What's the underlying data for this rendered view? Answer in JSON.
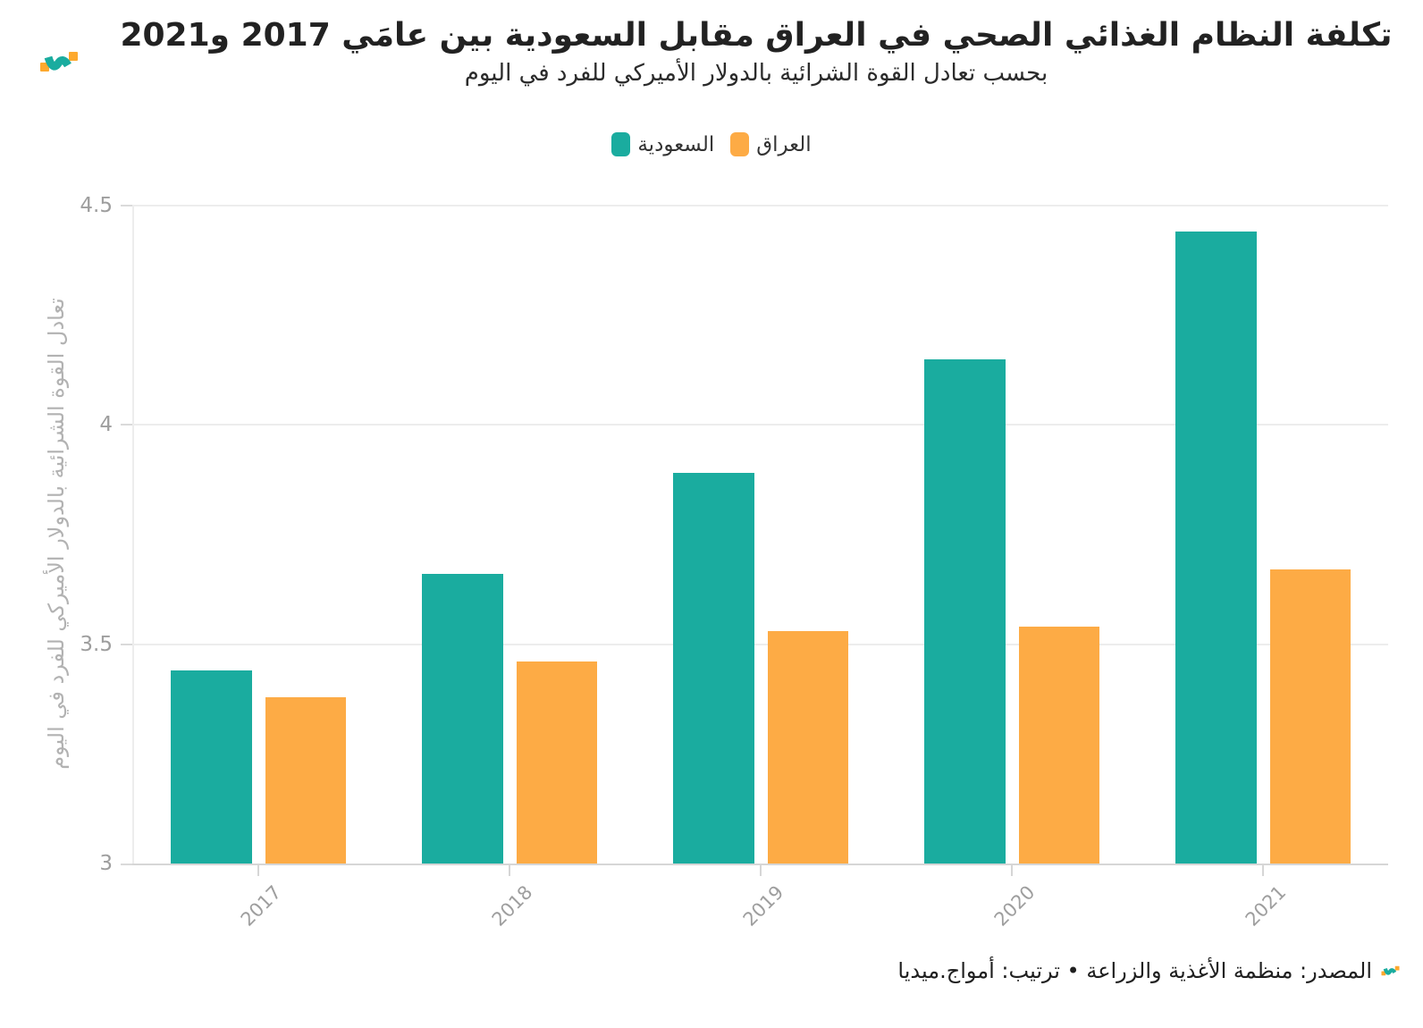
{
  "header": {
    "title": "تكلفة النظام الغذائي الصحي في العراق مقابل السعودية بين عامَي 2017 و2021",
    "subtitle": "بحسب تعادل القوة الشرائية بالدولار الأميركي للفرد في اليوم"
  },
  "legend": {
    "items": [
      {
        "label": "السعودية",
        "color": "#1AAC9F"
      },
      {
        "label": "العراق",
        "color": "#FDAB45"
      }
    ]
  },
  "chart_data": {
    "type": "bar",
    "categories": [
      "2017",
      "2018",
      "2019",
      "2020",
      "2021"
    ],
    "series": [
      {
        "name": "السعودية",
        "color": "#1AAC9F",
        "values": [
          3.44,
          3.66,
          3.89,
          4.15,
          4.44
        ]
      },
      {
        "name": "العراق",
        "color": "#FDAB45",
        "values": [
          3.38,
          3.46,
          3.53,
          3.54,
          3.67
        ]
      }
    ],
    "title": "تكلفة النظام الغذائي الصحي في العراق مقابل السعودية بين عامَي 2017 و2021",
    "subtitle": "بحسب تعادل القوة الشرائية بالدولار الأميركي للفرد في اليوم",
    "xlabel": "",
    "ylabel": "تعادل القوة الشرائية بالدولار الأميركي للفرد في اليوم",
    "ylim": [
      3,
      4.5
    ],
    "yticks": [
      3,
      3.5,
      4,
      4.5
    ],
    "grid": true,
    "legend_position": "top"
  },
  "footer": {
    "source": "المصدر: منظمة الأغذية والزراعة • ترتيب: أمواج.ميديا"
  },
  "colors": {
    "saudi": "#1AAC9F",
    "iraq": "#FDAB45",
    "gridline": "#ededed",
    "axis_line": "#d6d6d6",
    "tick_label": "#9e9e9e",
    "axis_title": "#b2b2b2",
    "title_text": "#222222"
  }
}
